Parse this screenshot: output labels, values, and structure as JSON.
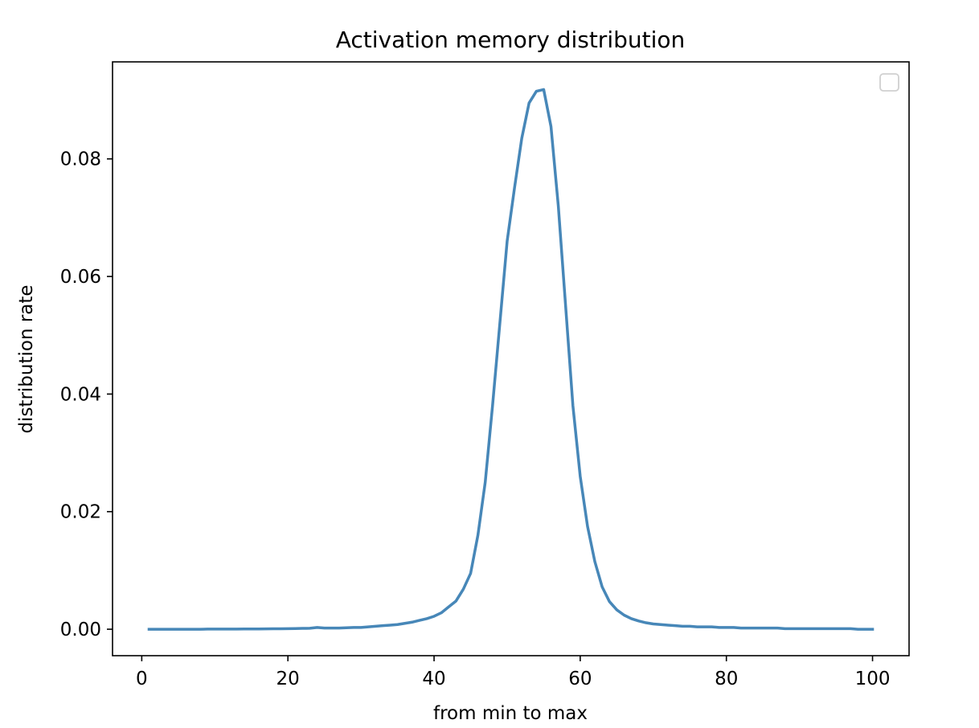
{
  "chart_data": {
    "type": "line",
    "title": "Activation memory distribution",
    "xlabel": "from min to max",
    "ylabel": "distribution rate",
    "xlim": [
      -4,
      105
    ],
    "ylim": [
      -0.0045,
      0.0965
    ],
    "xticks": [
      0,
      20,
      40,
      60,
      80,
      100
    ],
    "xtick_labels": [
      "0",
      "20",
      "40",
      "60",
      "80",
      "100"
    ],
    "yticks": [
      0.0,
      0.02,
      0.04,
      0.06,
      0.08
    ],
    "ytick_labels": [
      "0.00",
      "0.02",
      "0.04",
      "0.06",
      "0.08"
    ],
    "grid": false,
    "legend": {
      "placement": "top-right",
      "entries": []
    },
    "colors": {
      "line": "#4787b8",
      "axes": "#000000",
      "background": "#ffffff"
    },
    "series": [
      {
        "x": [
          1,
          2,
          3,
          4,
          5,
          6,
          7,
          8,
          9,
          10,
          11,
          12,
          13,
          14,
          15,
          16,
          17,
          18,
          19,
          20,
          21,
          22,
          23,
          24,
          25,
          26,
          27,
          28,
          29,
          30,
          31,
          32,
          33,
          34,
          35,
          36,
          37,
          38,
          39,
          40,
          41,
          42,
          43,
          44,
          45,
          46,
          47,
          48,
          49,
          50,
          51,
          52,
          53,
          54,
          55,
          56,
          57,
          58,
          59,
          60,
          61,
          62,
          63,
          64,
          65,
          66,
          67,
          68,
          69,
          70,
          71,
          72,
          73,
          74,
          75,
          76,
          77,
          78,
          79,
          80,
          81,
          82,
          83,
          84,
          85,
          86,
          87,
          88,
          89,
          90,
          91,
          92,
          93,
          94,
          95,
          96,
          97,
          98,
          99,
          100
        ],
        "y": [
          0.0,
          0.0,
          0.0,
          0.0,
          0.0,
          0.0,
          0.0,
          0.0,
          2e-05,
          2e-05,
          2e-05,
          3e-05,
          3e-05,
          4e-05,
          4e-05,
          5e-05,
          6e-05,
          7e-05,
          8e-05,
          0.0001,
          0.00012,
          0.00014,
          0.00016,
          0.0003,
          0.0002,
          0.0002,
          0.0002,
          0.00025,
          0.0003,
          0.0003,
          0.0004,
          0.0005,
          0.0006,
          0.0007,
          0.0008,
          0.001,
          0.0012,
          0.0015,
          0.0018,
          0.0022,
          0.0028,
          0.0038,
          0.0048,
          0.0068,
          0.0095,
          0.016,
          0.025,
          0.038,
          0.052,
          0.066,
          0.075,
          0.0835,
          0.0895,
          0.0915,
          0.0918,
          0.0855,
          0.072,
          0.055,
          0.038,
          0.026,
          0.0175,
          0.0115,
          0.0072,
          0.0047,
          0.0033,
          0.0024,
          0.0018,
          0.0014,
          0.0011,
          0.0009,
          0.0008,
          0.0007,
          0.0006,
          0.0005,
          0.0005,
          0.0004,
          0.0004,
          0.0004,
          0.0003,
          0.0003,
          0.0003,
          0.0002,
          0.0002,
          0.0002,
          0.0002,
          0.0002,
          0.0002,
          0.0001,
          0.0001,
          0.0001,
          0.0001,
          0.0001,
          0.0001,
          0.0001,
          0.0001,
          0.0001,
          0.0001,
          0.0,
          0.0,
          0.0
        ]
      }
    ]
  }
}
